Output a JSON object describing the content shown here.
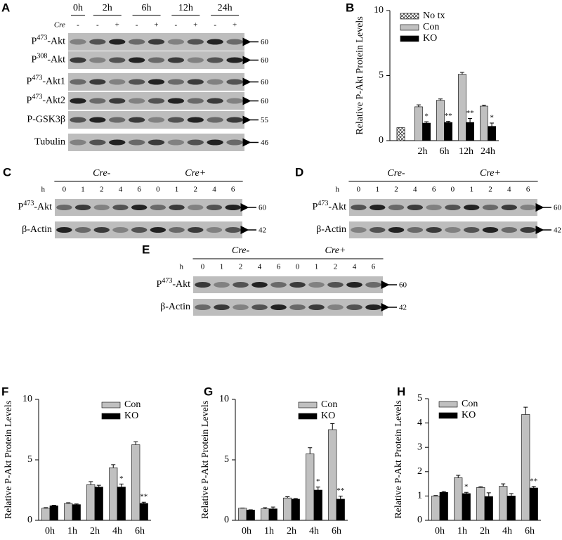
{
  "blots": [
    {
      "label": "A",
      "times": [
        "0h",
        "2h",
        "6h",
        "12h",
        "24h"
      ],
      "cre_label": "Cre",
      "cre": [
        "-",
        "-",
        "+",
        "-",
        "+",
        "-",
        "+",
        "-",
        "+"
      ],
      "rows": [
        {
          "name": [
            "P",
            "473",
            "-Akt"
          ],
          "kda": 60
        },
        {
          "name": [
            "P",
            "308",
            "-Akt"
          ],
          "kda": 60
        },
        {
          "name": [
            "P",
            "473",
            "-Akt1"
          ],
          "kda": 60
        },
        {
          "name": [
            "P",
            "473",
            "-Akt2"
          ],
          "kda": 60
        },
        {
          "name": [
            "P-GSK3β"
          ],
          "kda": 55
        },
        {
          "name": [
            "Tubulin"
          ],
          "kda": 46
        }
      ]
    },
    {
      "label": "C",
      "groups": [
        "Cre-",
        "Cre+"
      ],
      "h_label": "h",
      "lanes": [
        0,
        1,
        2,
        4,
        6,
        0,
        1,
        2,
        4,
        6
      ],
      "rows": [
        {
          "name": [
            "P",
            "473",
            "-Akt"
          ],
          "kda": 60
        },
        {
          "name": [
            "β-Actin"
          ],
          "kda": 42
        }
      ]
    },
    {
      "label": "D",
      "groups": [
        "Cre-",
        "Cre+"
      ],
      "h_label": "h",
      "lanes": [
        0,
        1,
        2,
        4,
        6,
        0,
        1,
        2,
        4,
        6
      ],
      "rows": [
        {
          "name": [
            "P",
            "473",
            "-Akt"
          ],
          "kda": 60
        },
        {
          "name": [
            "β-Actin"
          ],
          "kda": 42
        }
      ]
    },
    {
      "label": "E",
      "groups": [
        "Cre-",
        "Cre+"
      ],
      "h_label": "h",
      "lanes": [
        0,
        1,
        2,
        4,
        6,
        0,
        1,
        2,
        4,
        6
      ],
      "rows": [
        {
          "name": [
            "P",
            "473",
            "-Akt"
          ],
          "kda": 60
        },
        {
          "name": [
            "β-Actin"
          ],
          "kda": 42
        }
      ]
    }
  ],
  "chart_data": [
    {
      "type": "bar",
      "label": "B",
      "y_label": "Relative P-Akt Protein Levels",
      "categories": [
        null,
        "2h",
        "6h",
        "12h",
        "24h"
      ],
      "ylim": [
        0,
        10
      ],
      "yticks": [
        0,
        5,
        10
      ],
      "legend": "top-left",
      "series": [
        {
          "name": "No tx",
          "color": "#ffffff",
          "hatch": true,
          "values": [
            1,
            null,
            null,
            null,
            null
          ],
          "errors": [
            null,
            null,
            null,
            null,
            null
          ]
        },
        {
          "name": "Con",
          "color": "#c0c0c0",
          "values": [
            null,
            2.6,
            3.1,
            5.1,
            2.65
          ],
          "errors": [
            null,
            0.15,
            0.1,
            0.15,
            0.08
          ]
        },
        {
          "name": "KO",
          "color": "#000000",
          "values": [
            null,
            1.35,
            1.4,
            1.4,
            1.1
          ],
          "errors": [
            null,
            0.1,
            0.08,
            0.3,
            0.25
          ],
          "annotations": [
            null,
            "*",
            "**",
            "**",
            "*"
          ]
        }
      ]
    },
    {
      "type": "bar",
      "label": "F",
      "y_label": "Relative P-Akt Protein Levels",
      "categories": [
        "0h",
        "1h",
        "2h",
        "4h",
        "6h"
      ],
      "ylim": [
        0,
        10
      ],
      "yticks": [
        0,
        5,
        10
      ],
      "legend": "top-right",
      "series": [
        {
          "name": "Con",
          "color": "#c0c0c0",
          "values": [
            1,
            1.4,
            2.95,
            4.35,
            6.25
          ],
          "errors": [
            0.05,
            0.05,
            0.25,
            0.25,
            0.25
          ]
        },
        {
          "name": "KO",
          "color": "#000000",
          "values": [
            1.2,
            1.3,
            2.75,
            2.75,
            1.4
          ],
          "errors": [
            0.05,
            0.05,
            0.15,
            0.25,
            0.1
          ],
          "annotations": [
            null,
            null,
            null,
            "*",
            "**"
          ]
        }
      ]
    },
    {
      "type": "bar",
      "label": "G",
      "y_label": "Relative P-Akt Protein Levels",
      "categories": [
        "0h",
        "1h",
        "2h",
        "4h",
        "6h"
      ],
      "ylim": [
        0,
        10
      ],
      "yticks": [
        0,
        5,
        10
      ],
      "legend": "top-right",
      "series": [
        {
          "name": "Con",
          "color": "#c0c0c0",
          "values": [
            1,
            0.95,
            1.85,
            5.5,
            7.5
          ],
          "errors": [
            0.02,
            0.1,
            0.1,
            0.5,
            0.5
          ]
        },
        {
          "name": "KO",
          "color": "#000000",
          "values": [
            0.85,
            0.95,
            1.75,
            2.5,
            1.75
          ],
          "errors": [
            0.02,
            0.15,
            0.05,
            0.25,
            0.25
          ],
          "annotations": [
            null,
            null,
            null,
            "*",
            "**"
          ]
        }
      ]
    },
    {
      "type": "bar",
      "label": "H",
      "y_label": "Relative P-Akt Protein Levels",
      "categories": [
        "0h",
        "1h",
        "2h",
        "4h",
        "6h"
      ],
      "ylim": [
        0,
        5
      ],
      "yticks": [
        0,
        1,
        2,
        3,
        4,
        5
      ],
      "legend": "top-left",
      "series": [
        {
          "name": "Con",
          "color": "#c0c0c0",
          "values": [
            1,
            1.75,
            1.35,
            1.4,
            4.35
          ],
          "errors": [
            0.02,
            0.1,
            0.03,
            0.1,
            0.3
          ]
        },
        {
          "name": "KO",
          "color": "#000000",
          "values": [
            1.15,
            1.1,
            0.98,
            1,
            1.33
          ],
          "errors": [
            0.03,
            0.05,
            0.15,
            0.1,
            0.06
          ],
          "annotations": [
            null,
            "*",
            null,
            null,
            "**"
          ]
        }
      ]
    }
  ]
}
